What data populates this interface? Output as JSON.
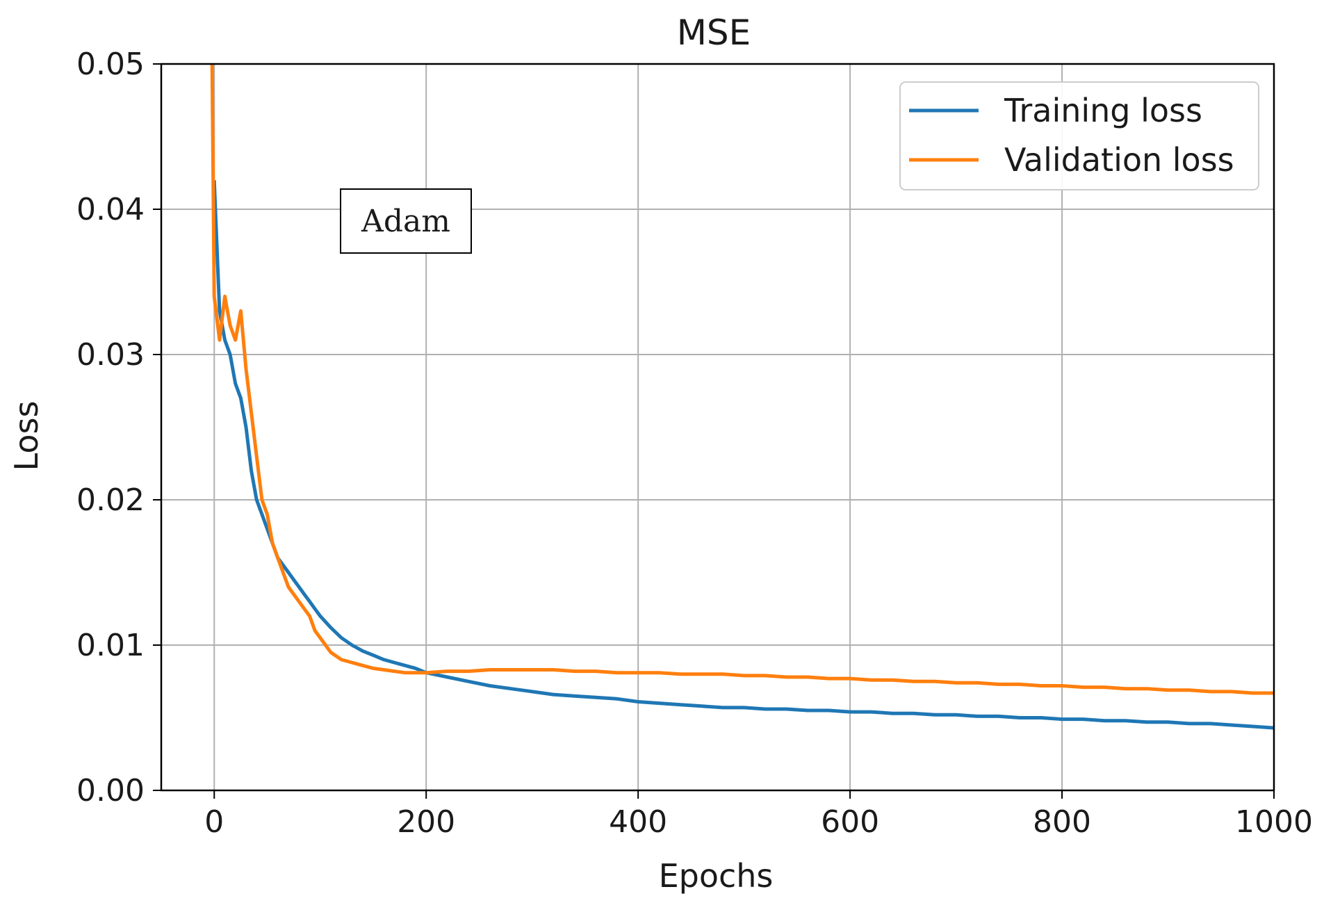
{
  "chart_data": {
    "type": "line",
    "title": "MSE",
    "xlabel": "Epochs",
    "ylabel": "Loss",
    "xlim": [
      -50,
      1000
    ],
    "ylim": [
      0.0,
      0.05
    ],
    "xticks": [
      0,
      200,
      400,
      600,
      800,
      1000
    ],
    "xtick_labels": [
      "0",
      "200",
      "400",
      "600",
      "800",
      "1000"
    ],
    "yticks": [
      0.0,
      0.01,
      0.02,
      0.03,
      0.04,
      0.05
    ],
    "ytick_labels": [
      "0.00",
      "0.01",
      "0.02",
      "0.03",
      "0.04",
      "0.05"
    ],
    "grid": true,
    "legend_position": "top-right",
    "annotation": "Adam",
    "series": [
      {
        "name": "Training loss",
        "color": "#1f77b4",
        "x": [
          0,
          5,
          10,
          15,
          20,
          25,
          30,
          35,
          40,
          45,
          50,
          55,
          60,
          65,
          70,
          75,
          80,
          85,
          90,
          95,
          100,
          110,
          120,
          130,
          140,
          150,
          160,
          170,
          180,
          190,
          200,
          220,
          240,
          260,
          280,
          300,
          320,
          340,
          360,
          380,
          400,
          420,
          440,
          460,
          480,
          500,
          520,
          540,
          560,
          580,
          600,
          620,
          640,
          660,
          680,
          700,
          720,
          740,
          760,
          780,
          800,
          820,
          840,
          860,
          880,
          900,
          920,
          940,
          960,
          980,
          1000
        ],
        "y": [
          0.042,
          0.033,
          0.031,
          0.03,
          0.028,
          0.027,
          0.025,
          0.022,
          0.02,
          0.019,
          0.018,
          0.017,
          0.016,
          0.0155,
          0.015,
          0.0145,
          0.014,
          0.0135,
          0.013,
          0.0125,
          0.012,
          0.0112,
          0.0105,
          0.01,
          0.0096,
          0.0093,
          0.009,
          0.0088,
          0.0086,
          0.0084,
          0.0081,
          0.0078,
          0.0075,
          0.0072,
          0.007,
          0.0068,
          0.0066,
          0.0065,
          0.0064,
          0.0063,
          0.0061,
          0.006,
          0.0059,
          0.0058,
          0.0057,
          0.0057,
          0.0056,
          0.0056,
          0.0055,
          0.0055,
          0.0054,
          0.0054,
          0.0053,
          0.0053,
          0.0052,
          0.0052,
          0.0051,
          0.0051,
          0.005,
          0.005,
          0.0049,
          0.0049,
          0.0048,
          0.0048,
          0.0047,
          0.0047,
          0.0046,
          0.0046,
          0.0045,
          0.0044,
          0.0043
        ]
      },
      {
        "name": "Validation loss",
        "color": "#ff7f0e",
        "x": [
          -2,
          0,
          5,
          10,
          15,
          20,
          25,
          30,
          35,
          40,
          45,
          50,
          55,
          60,
          65,
          70,
          75,
          80,
          85,
          90,
          95,
          100,
          110,
          120,
          130,
          140,
          150,
          160,
          170,
          180,
          190,
          200,
          220,
          240,
          260,
          280,
          300,
          320,
          340,
          360,
          380,
          400,
          420,
          440,
          460,
          480,
          500,
          520,
          540,
          560,
          580,
          600,
          620,
          640,
          660,
          680,
          700,
          720,
          740,
          760,
          780,
          800,
          820,
          840,
          860,
          880,
          900,
          920,
          940,
          960,
          980,
          1000
        ],
        "y": [
          0.05,
          0.034,
          0.031,
          0.034,
          0.032,
          0.031,
          0.033,
          0.029,
          0.026,
          0.023,
          0.02,
          0.019,
          0.017,
          0.016,
          0.015,
          0.014,
          0.0135,
          0.013,
          0.0125,
          0.012,
          0.011,
          0.0105,
          0.0095,
          0.009,
          0.0088,
          0.0086,
          0.0084,
          0.0083,
          0.0082,
          0.0081,
          0.0081,
          0.0081,
          0.0082,
          0.0082,
          0.0083,
          0.0083,
          0.0083,
          0.0083,
          0.0082,
          0.0082,
          0.0081,
          0.0081,
          0.0081,
          0.008,
          0.008,
          0.008,
          0.0079,
          0.0079,
          0.0078,
          0.0078,
          0.0077,
          0.0077,
          0.0076,
          0.0076,
          0.0075,
          0.0075,
          0.0074,
          0.0074,
          0.0073,
          0.0073,
          0.0072,
          0.0072,
          0.0071,
          0.0071,
          0.007,
          0.007,
          0.0069,
          0.0069,
          0.0068,
          0.0068,
          0.0067,
          0.0067
        ]
      }
    ]
  }
}
